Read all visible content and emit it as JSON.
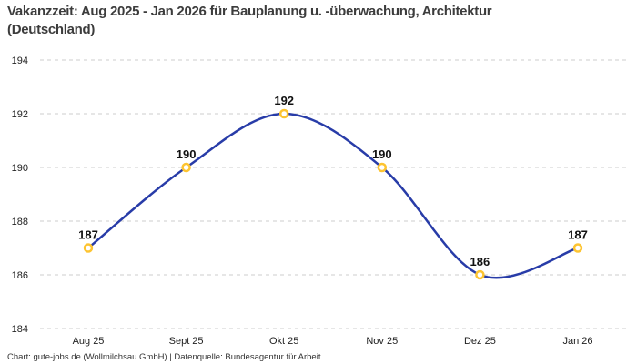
{
  "header": {
    "title": "Vakanzzeit: Aug 2025 - Jan 2026 für Bauplanung u. -überwachung, Architektur (Deutschland)"
  },
  "footer": {
    "attribution": "Chart: gute-jobs.de (Wollmilchsau GmbH) | Datenquelle: Bundesagentur für Arbeit"
  },
  "chart_data": {
    "type": "line",
    "title": "Vakanzzeit: Aug 2025 - Jan 2026 für Bauplanung u. -überwachung, Architektur (Deutschland)",
    "categories": [
      "Aug 25",
      "Sept 25",
      "Okt 25",
      "Nov 25",
      "Dez 25",
      "Jan 26"
    ],
    "values": [
      187,
      190,
      192,
      190,
      186,
      187
    ],
    "data_labels": true,
    "xlabel": "",
    "ylabel": "",
    "ylim": [
      184,
      194
    ],
    "yticks": [
      194,
      192,
      190,
      188,
      186,
      184
    ],
    "grid": "horizontal-dashed",
    "legend": "none",
    "smooth": true,
    "colors": {
      "line": "#283ca8",
      "marker_ring": "#fdc431",
      "marker_fill": "#ffffff",
      "grid": "#cccccc",
      "tick_text": "#222222",
      "value_label": "#111111"
    }
  }
}
